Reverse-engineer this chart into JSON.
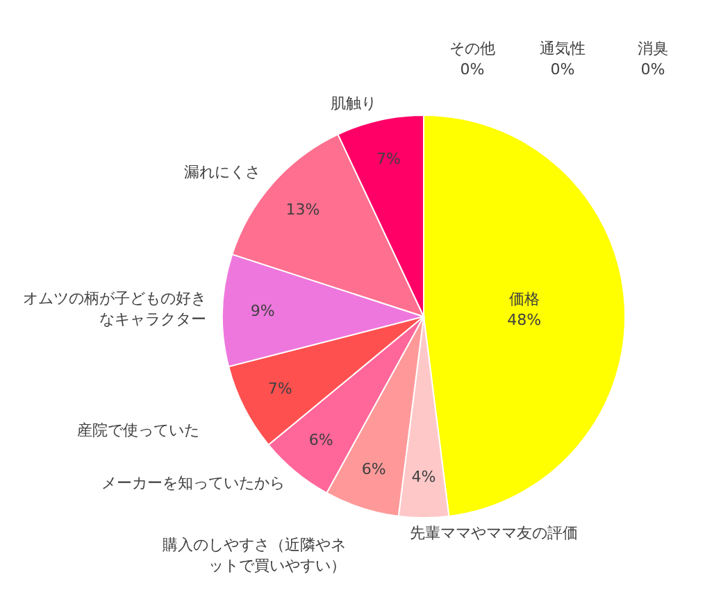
{
  "chart_data": {
    "type": "pie",
    "categories": [
      "価格",
      "先輩ママやママ友の評価",
      "購入のしやすさ（近隣やネットで買いやすい）",
      "メーカーを知っていたから",
      "産院で使っていた",
      "オムツの柄が子どもの好きなキャラクター",
      "漏れにくさ",
      "肌触り",
      "その他",
      "通気性",
      "消臭"
    ],
    "values": [
      48,
      4,
      6,
      6,
      7,
      9,
      13,
      7,
      0,
      0,
      0
    ],
    "colors": [
      "#ffff00",
      "#ffc8c8",
      "#ff9999",
      "#ff6699",
      "#ff5050",
      "#ee77dd",
      "#ff6f8f",
      "#ff0066",
      "#bfbfbf",
      "#a6a6a6",
      "#8c8c8c"
    ],
    "value_labels": [
      "48%",
      "4%",
      "6%",
      "6%",
      "7%",
      "9%",
      "13%",
      "7%",
      "0%",
      "0%",
      "0%"
    ]
  }
}
